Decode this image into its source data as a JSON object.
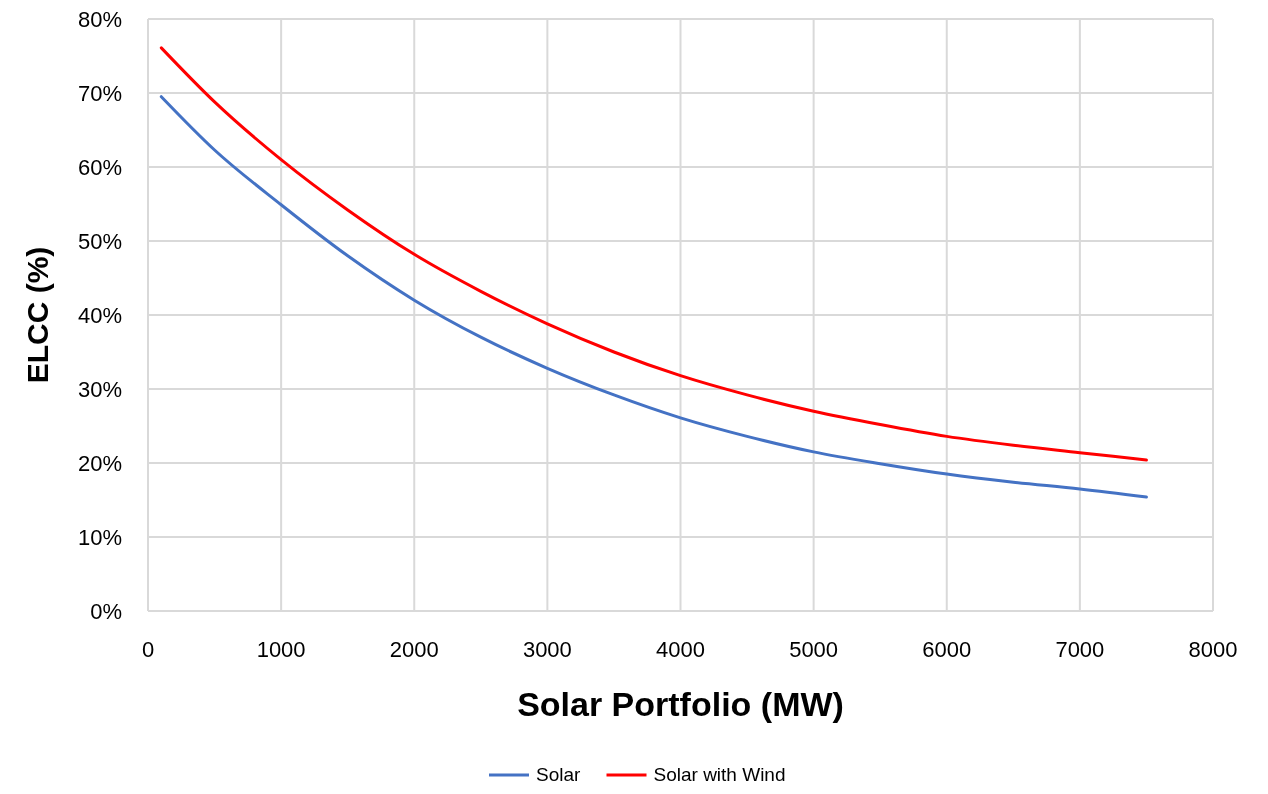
{
  "chart_data": {
    "type": "line",
    "xlabel": "Solar Portfolio (MW)",
    "ylabel": "ELCC (%)",
    "x": [
      100,
      500,
      1000,
      1500,
      2000,
      2500,
      3000,
      3500,
      4000,
      4500,
      5000,
      5500,
      6000,
      6500,
      7000,
      7500
    ],
    "series": [
      {
        "name": "Solar",
        "color": "#4472c4",
        "values": [
          69.5,
          62.3,
          54.9,
          48,
          42,
          37,
          32.8,
          29.2,
          26.1,
          23.6,
          21.5,
          19.9,
          18.5,
          17.4,
          16.5,
          15.4
        ]
      },
      {
        "name": "Solar with Wind",
        "color": "#ff0000",
        "values": [
          76.1,
          68.8,
          61,
          54.2,
          48.2,
          43.2,
          38.8,
          35,
          31.8,
          29.2,
          27,
          25.2,
          23.6,
          22.4,
          21.4,
          20.4
        ]
      }
    ],
    "xlim": [
      0,
      8000
    ],
    "xticks": [
      0,
      1000,
      2000,
      3000,
      4000,
      5000,
      6000,
      7000,
      8000
    ],
    "ylim": [
      0,
      80
    ],
    "yticks": [
      {
        "value": 0,
        "label": "0%"
      },
      {
        "value": 10,
        "label": "10%"
      },
      {
        "value": 20,
        "label": "20%"
      },
      {
        "value": 30,
        "label": "30%"
      },
      {
        "value": 40,
        "label": "40%"
      },
      {
        "value": 50,
        "label": "50%"
      },
      {
        "value": 60,
        "label": "60%"
      },
      {
        "value": 70,
        "label": "70%"
      },
      {
        "value": 80,
        "label": "80%"
      }
    ],
    "grid": true,
    "legend": "bottom",
    "marker": "none",
    "line_style": "solid"
  }
}
